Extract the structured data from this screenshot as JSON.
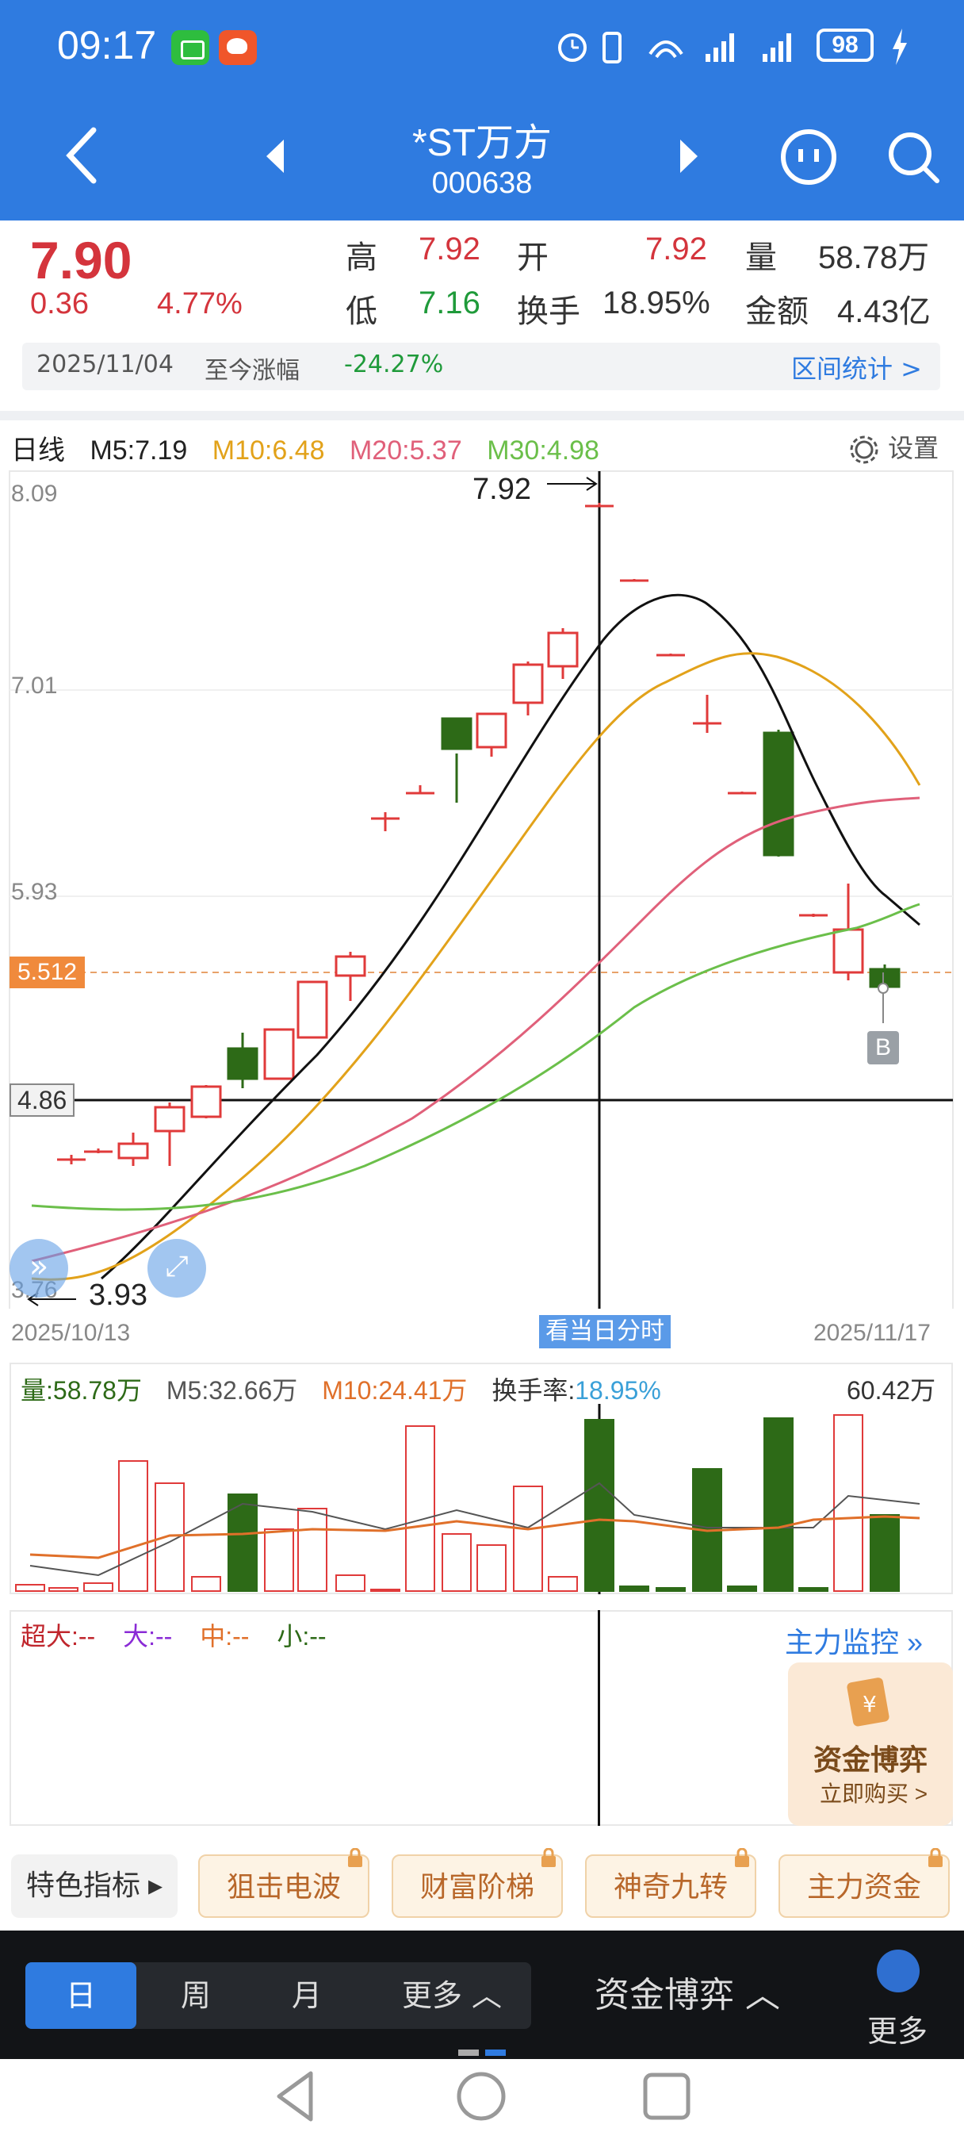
{
  "status_bar": {
    "time": "09:17",
    "battery": "98"
  },
  "header": {
    "stock_name": "*ST万方",
    "stock_code": "000638"
  },
  "quote": {
    "price": "7.90",
    "change": "0.36",
    "change_pct": "4.77%",
    "high_label": "高",
    "high": "7.92",
    "open_label": "开",
    "open": "7.92",
    "volume_label": "量",
    "volume": "58.78万",
    "low_label": "低",
    "low": "7.16",
    "turnover_label": "换手",
    "turnover": "18.95%",
    "amount_label": "金额",
    "amount": "4.43亿",
    "stat_date": "2025/11/04",
    "stat_label": "至今涨幅",
    "stat_value": "-24.27%",
    "interval_stats": "区间统计 >"
  },
  "kline": {
    "period_label": "日线",
    "m5": "M5:7.19",
    "m10": "M10:6.48",
    "m20": "M20:5.37",
    "m30": "M30:4.98",
    "settings": "设置",
    "axis_labels": [
      "8.09",
      "7.01",
      "5.93",
      "3.76"
    ],
    "ref_price": "5.512",
    "cursor_price": "4.86",
    "max_label": "7.92",
    "min_label": "3.93",
    "start_date": "2025/10/13",
    "end_date": "2025/11/17",
    "view_intraday": "看当日分时",
    "marker": "B",
    "colors": {
      "up": "#e03a3a",
      "down": "#2d6a17",
      "m5": "#111111",
      "m10": "#e2a21a",
      "m20": "#e0607a",
      "m30": "#6bbf4a"
    }
  },
  "volume": {
    "vol": "量:58.78万",
    "m5": "M5:32.66万",
    "m10": "M10:24.41万",
    "turnover_label": "换手率:",
    "turnover": "18.95%",
    "max": "60.42万"
  },
  "fund": {
    "super": "超大:--",
    "large": "大:--",
    "mid": "中:--",
    "small": "小:--",
    "monitor": "主力监控 »",
    "promo_title": "资金博弈",
    "promo_sub": "立即购买 >"
  },
  "features": {
    "label": "特色指标 ▸",
    "items": [
      "狙击电波",
      "财富阶梯",
      "神奇九转",
      "主力资金"
    ]
  },
  "bottom": {
    "tabs": [
      "日",
      "周",
      "月",
      "更多 ︿"
    ],
    "game": "资金博弈 ︿",
    "more": "更多"
  }
}
